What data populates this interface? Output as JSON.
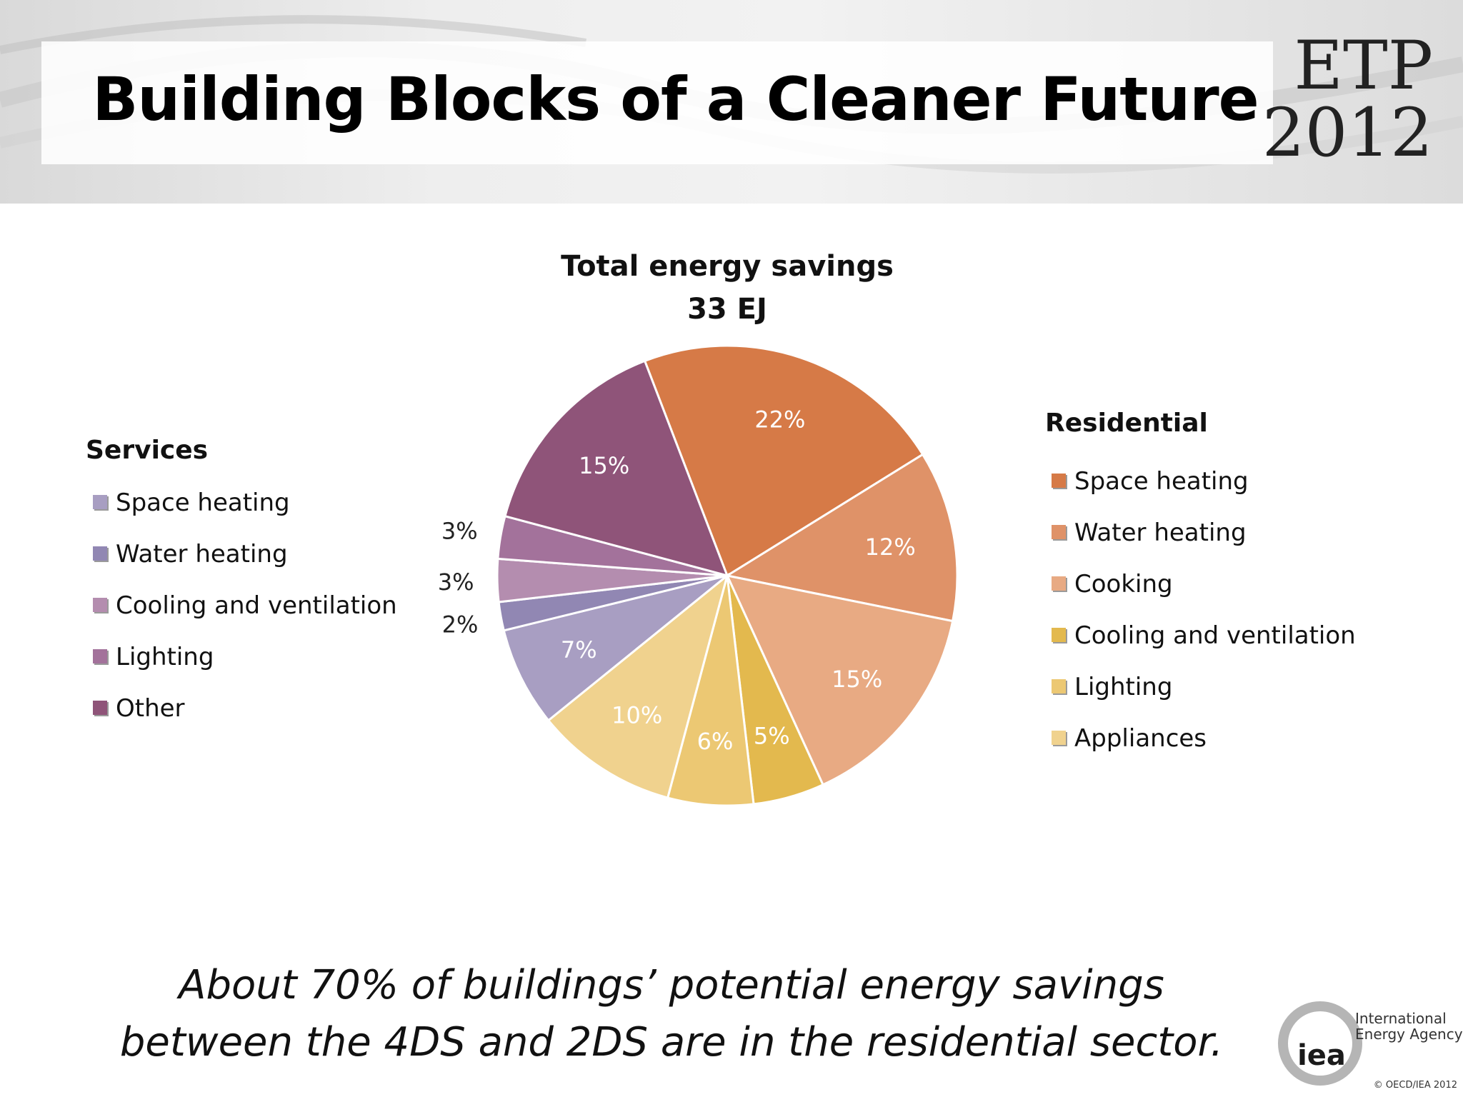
{
  "slide": {
    "title": "Building Blocks of a Cleaner Future",
    "badge": {
      "line1": "ETP",
      "line2": "2012"
    },
    "footnote_line1": "About 70% of buildings’ potential energy savings",
    "footnote_line2": "between the 4DS and 2DS are in the residential sector.",
    "logo": {
      "mark": "iea",
      "line1": "International",
      "line2": "Energy Agency"
    },
    "copyright": "© OECD/IEA 2012"
  },
  "chart_data": {
    "type": "pie",
    "title": "Total energy savings",
    "subtitle": "33 EJ",
    "start_angle_deg": -21,
    "direction": "clockwise",
    "legends": [
      {
        "group": "Services",
        "entries": [
          "Space heating",
          "Water heating",
          "Cooling and ventilation",
          "Lighting",
          "Other"
        ]
      },
      {
        "group": "Residential",
        "entries": [
          "Space heating",
          "Water heating",
          "Cooling and ventilation",
          "Cooking",
          "Lighting",
          "Appliances"
        ]
      }
    ],
    "slices": [
      {
        "group": "Residential",
        "name": "Space heating",
        "value": 22,
        "label": "22%",
        "color": "#D67A47"
      },
      {
        "group": "Residential",
        "name": "Water heating",
        "value": 12,
        "label": "12%",
        "color": "#DF9268"
      },
      {
        "group": "Residential",
        "name": "Cooking",
        "value": 15,
        "label": "15%",
        "color": "#E8AA83"
      },
      {
        "group": "Residential",
        "name": "Cooling and ventilation",
        "value": 5,
        "label": "5%",
        "color": "#E3B94E"
      },
      {
        "group": "Residential",
        "name": "Lighting",
        "value": 6,
        "label": "6%",
        "color": "#ECC873"
      },
      {
        "group": "Residential",
        "name": "Appliances",
        "value": 10,
        "label": "10%",
        "color": "#F0D28E"
      },
      {
        "group": "Services",
        "name": "Space heating",
        "value": 7,
        "label": "7%",
        "color": "#A89EC2"
      },
      {
        "group": "Services",
        "name": "Water heating",
        "value": 2,
        "label": "2%",
        "color": "#9187B3"
      },
      {
        "group": "Services",
        "name": "Cooling and ventilation",
        "value": 3,
        "label": "3%",
        "color": "#B48DAF"
      },
      {
        "group": "Services",
        "name": "Lighting",
        "value": 3,
        "label": "3%",
        "color": "#A3729B"
      },
      {
        "group": "Services",
        "name": "Other",
        "value": 15,
        "label": "15%",
        "color": "#8F5479"
      }
    ]
  }
}
